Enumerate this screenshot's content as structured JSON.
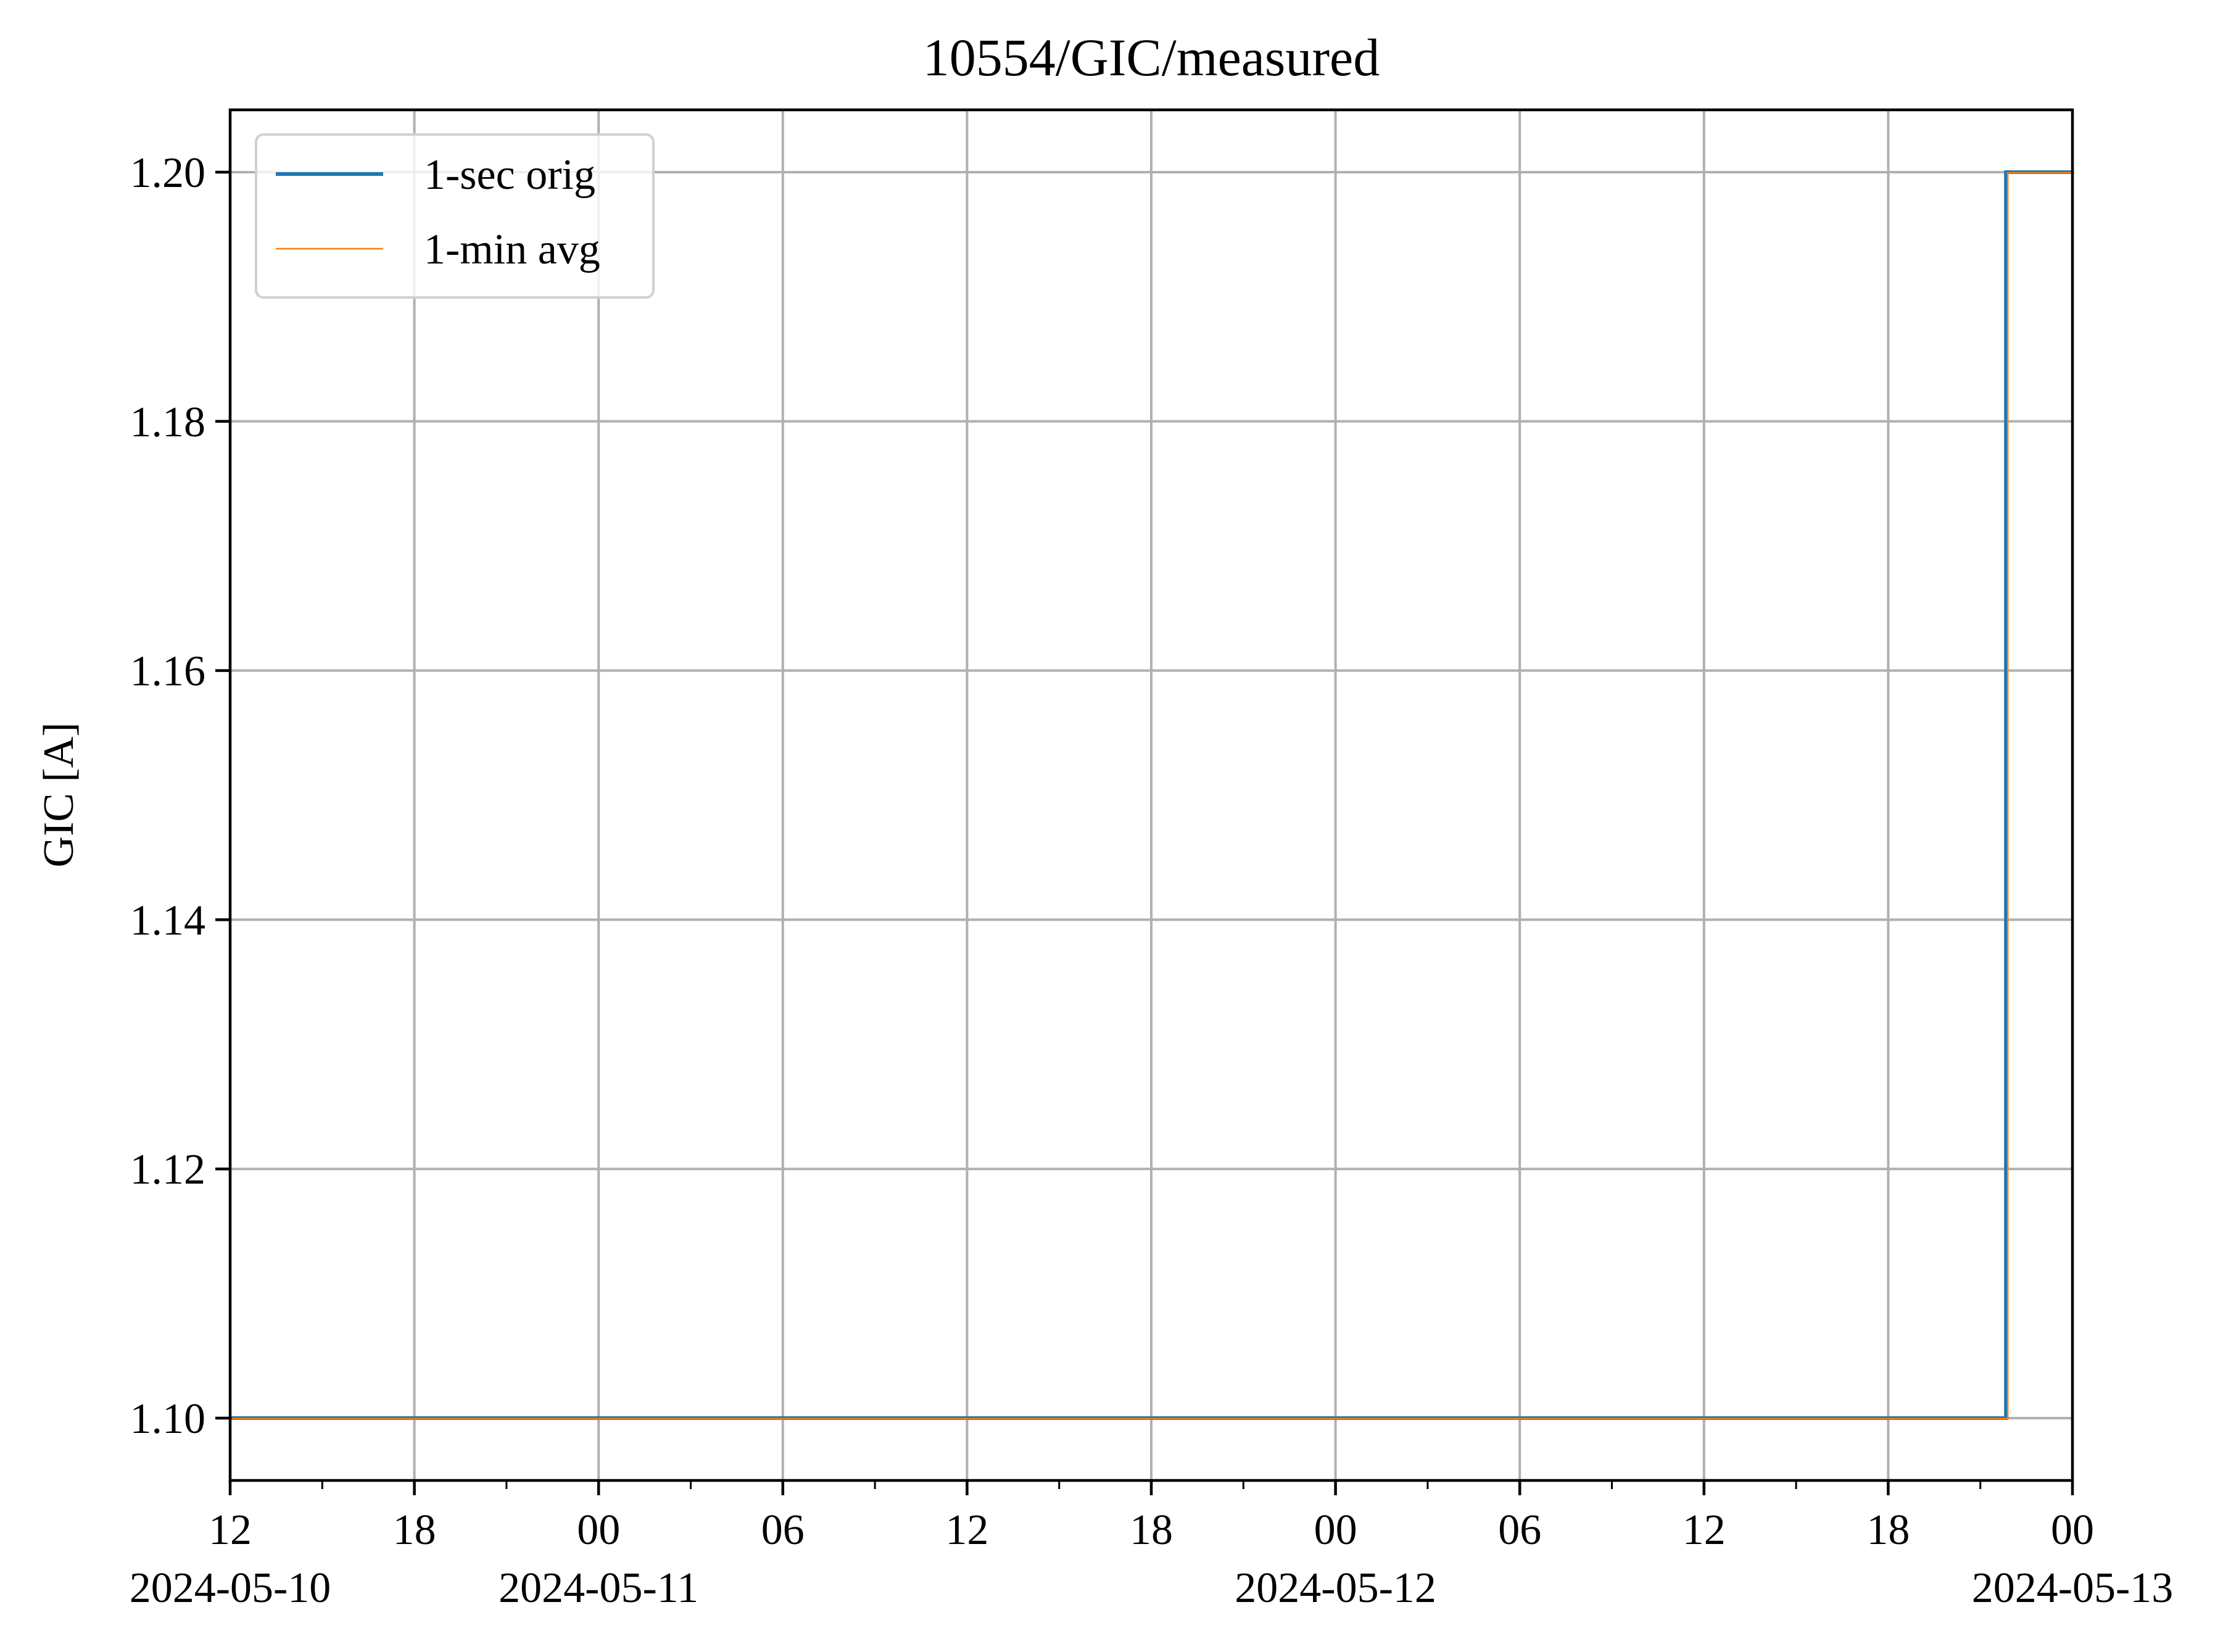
{
  "chart_data": {
    "type": "line",
    "title": "10554/GIC/measured",
    "xlabel": "",
    "ylabel": "GIC [A]",
    "xlim": [
      "2024-05-10T12:00",
      "2024-05-13T00:00"
    ],
    "ylim": [
      1.095,
      1.205
    ],
    "grid": true,
    "legend_position": "top-left",
    "x_major_ticks": [
      {
        "t": "2024-05-10T12:00",
        "label": "12",
        "date": "2024-05-10"
      },
      {
        "t": "2024-05-10T18:00",
        "label": "18",
        "date": ""
      },
      {
        "t": "2024-05-11T00:00",
        "label": "00",
        "date": "2024-05-11"
      },
      {
        "t": "2024-05-11T06:00",
        "label": "06",
        "date": ""
      },
      {
        "t": "2024-05-11T12:00",
        "label": "12",
        "date": ""
      },
      {
        "t": "2024-05-11T18:00",
        "label": "18",
        "date": ""
      },
      {
        "t": "2024-05-12T00:00",
        "label": "00",
        "date": "2024-05-12"
      },
      {
        "t": "2024-05-12T06:00",
        "label": "06",
        "date": ""
      },
      {
        "t": "2024-05-12T12:00",
        "label": "12",
        "date": ""
      },
      {
        "t": "2024-05-12T18:00",
        "label": "18",
        "date": ""
      },
      {
        "t": "2024-05-13T00:00",
        "label": "00",
        "date": "2024-05-13"
      }
    ],
    "y_ticks": [
      {
        "v": 1.1,
        "label": "1.10"
      },
      {
        "v": 1.12,
        "label": "1.12"
      },
      {
        "v": 1.14,
        "label": "1.14"
      },
      {
        "v": 1.16,
        "label": "1.16"
      },
      {
        "v": 1.18,
        "label": "1.18"
      },
      {
        "v": 1.2,
        "label": "1.20"
      }
    ],
    "series": [
      {
        "name": "1-sec orig",
        "color": "#1f77b4",
        "style": "step",
        "points": [
          {
            "x": "2024-05-10T12:00",
            "y": 1.1
          },
          {
            "x": "2024-05-12T21:50",
            "y": 1.1
          },
          {
            "x": "2024-05-12T21:50",
            "y": 1.2
          },
          {
            "x": "2024-05-13T00:00",
            "y": 1.2
          }
        ]
      },
      {
        "name": "1-min avg",
        "color": "#ff7f0e",
        "style": "step",
        "points": [
          {
            "x": "2024-05-10T12:00",
            "y": 1.1
          },
          {
            "x": "2024-05-12T21:50",
            "y": 1.1
          },
          {
            "x": "2024-05-12T21:50",
            "y": 1.2
          },
          {
            "x": "2024-05-13T00:00",
            "y": 1.2
          }
        ]
      }
    ]
  }
}
